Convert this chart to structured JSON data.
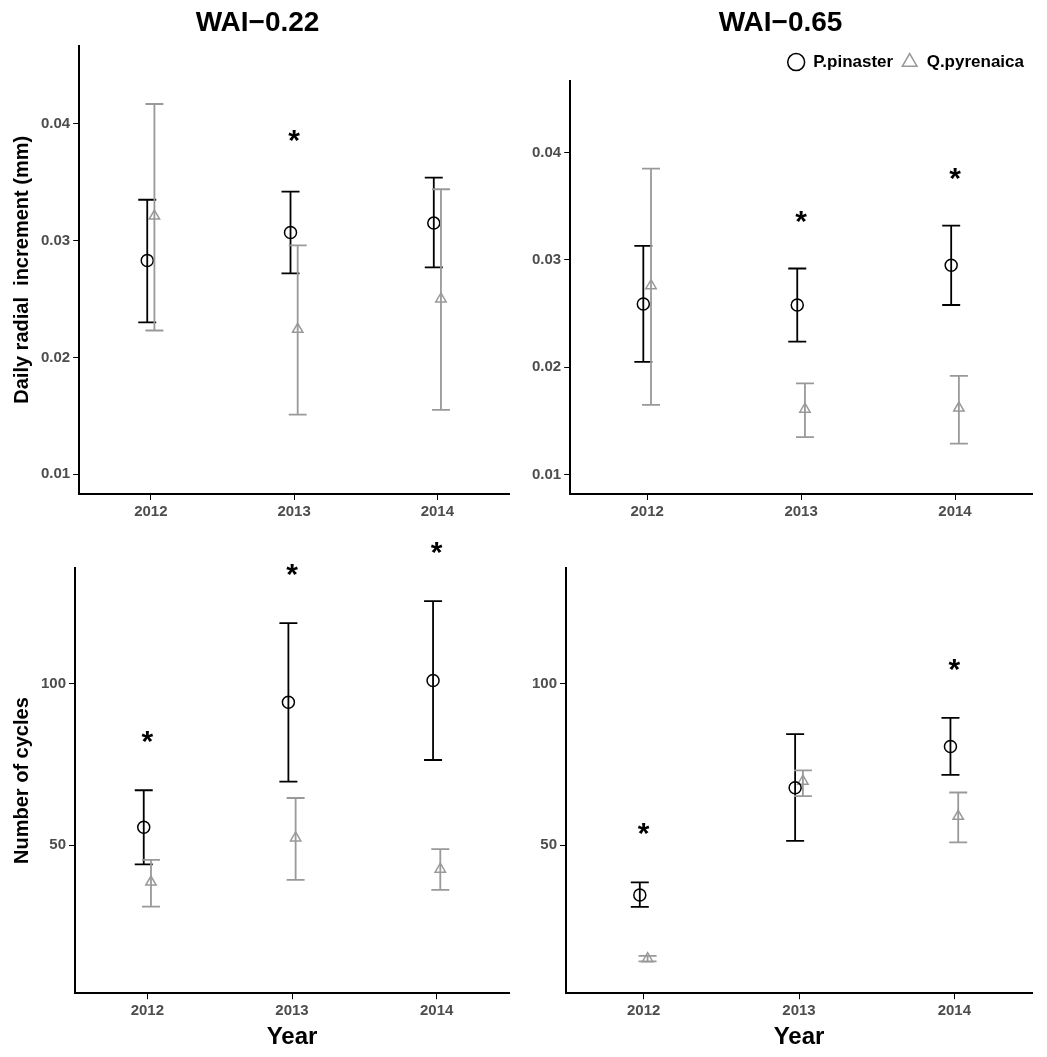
{
  "chart_data": [
    {
      "type": "scatter",
      "title": "WAI−0.22",
      "ylabel": "Daily radial  increment (mm)",
      "categories": [
        "2012",
        "2013",
        "2014"
      ],
      "ylim": [
        0.0083,
        0.0467
      ],
      "yticks": [
        0.01,
        0.02,
        0.03,
        0.04
      ],
      "grid": false,
      "legend": false,
      "series": [
        {
          "color": "#000000",
          "marker": "circle",
          "values": [
            0.0283,
            0.0307,
            0.0315
          ],
          "errors": [
            [
              0.023,
              0.0335
            ],
            [
              0.0272,
              0.0342
            ],
            [
              0.0277,
              0.0354
            ]
          ]
        },
        {
          "color": "#999999",
          "marker": "triangle",
          "values": [
            0.0321,
            0.0224,
            0.025
          ],
          "errors": [
            [
              0.0223,
              0.0417
            ],
            [
              0.0151,
              0.0296
            ],
            [
              0.0155,
              0.0344
            ]
          ]
        }
      ],
      "annotations": [
        "*"
      ]
    },
    {
      "type": "scatter",
      "title": "WAI−0.65",
      "categories": [
        "2012",
        "2013",
        "2014"
      ],
      "ylim": [
        0.0082,
        0.0467
      ],
      "yticks": [
        0.01,
        0.02,
        0.03,
        0.04
      ],
      "grid": false,
      "legend": "top right",
      "series": [
        {
          "name": "P.pinaster",
          "color": "#000000",
          "marker": "circle",
          "values": [
            0.0259,
            0.0258,
            0.0295
          ],
          "errors": [
            [
              0.0205,
              0.0313
            ],
            [
              0.0224,
              0.0292
            ],
            [
              0.0258,
              0.0332
            ]
          ]
        },
        {
          "name": "Q.pyrenaica",
          "color": "#999999",
          "marker": "triangle",
          "values": [
            0.0276,
            0.0161,
            0.0162
          ],
          "errors": [
            [
              0.0165,
              0.0385
            ],
            [
              0.0135,
              0.0185
            ],
            [
              0.0129,
              0.0192
            ]
          ]
        }
      ],
      "annotations": [
        "*",
        "*"
      ]
    },
    {
      "type": "scatter",
      "xlabel": "Year",
      "ylabel": "Number of cycles",
      "categories": [
        "2012",
        "2013",
        "2014"
      ],
      "ylim": [
        4,
        136
      ],
      "yticks": [
        50,
        100
      ],
      "grid": false,
      "legend": false,
      "series": [
        {
          "color": "#000000",
          "marker": "circle",
          "values": [
            55.5,
            94.3,
            101.1
          ],
          "errors": [
            [
              44.0,
              67.0
            ],
            [
              69.7,
              118.9
            ],
            [
              76.4,
              125.7
            ]
          ]
        },
        {
          "color": "#999999",
          "marker": "triangle",
          "values": [
            38.5,
            52.2,
            42.5
          ],
          "errors": [
            [
              30.9,
              45.4
            ],
            [
              39.2,
              64.6
            ],
            [
              36.1,
              48.7
            ]
          ]
        }
      ],
      "annotations": [
        "*",
        "*",
        "*"
      ]
    },
    {
      "type": "scatter",
      "xlabel": "Year",
      "categories": [
        "2012",
        "2013",
        "2014"
      ],
      "ylim": [
        4,
        136
      ],
      "yticks": [
        50,
        100
      ],
      "grid": false,
      "legend": false,
      "series": [
        {
          "color": "#000000",
          "marker": "circle",
          "values": [
            34.5,
            67.8,
            80.6
          ],
          "errors": [
            [
              30.8,
              38.4
            ],
            [
              51.3,
              84.4
            ],
            [
              71.8,
              89.5
            ]
          ]
        },
        {
          "color": "#999999",
          "marker": "triangle",
          "values": [
            14.7,
            69.8,
            58.9
          ],
          "errors": [
            [
              13.9,
              15.6
            ],
            [
              65.2,
              73.2
            ],
            [
              50.8,
              66.3
            ]
          ]
        }
      ],
      "annotations": [
        "*",
        "*"
      ]
    }
  ]
}
